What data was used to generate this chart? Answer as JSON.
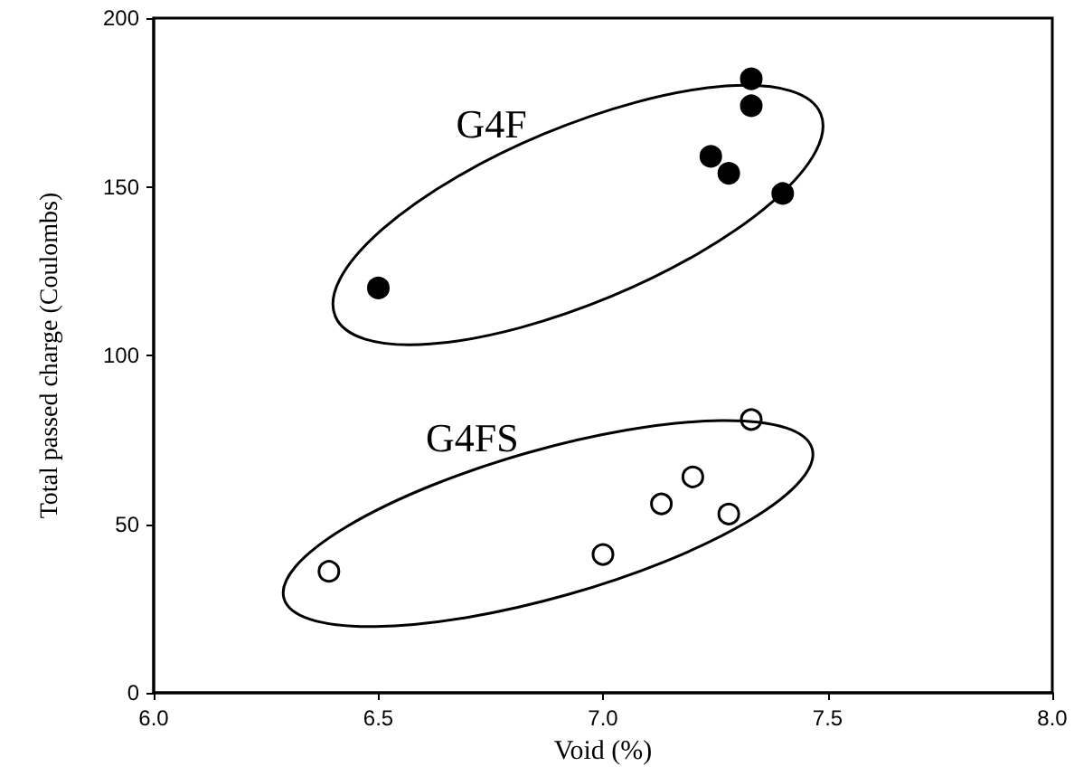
{
  "chart_data": {
    "type": "scatter",
    "xlabel": "Void (%)",
    "ylabel": "Total passed charge (Coulombs)",
    "xlim": [
      6.0,
      8.0
    ],
    "xticks": [
      {
        "value": 6.0,
        "label": "6.0"
      },
      {
        "value": 6.5,
        "label": "6.5"
      },
      {
        "value": 7.0,
        "label": "7.0"
      },
      {
        "value": 7.5,
        "label": "7.5"
      },
      {
        "value": 8.0,
        "label": "8.0"
      }
    ],
    "ylim": [
      0,
      200
    ],
    "yticks": [
      0,
      50,
      100,
      150,
      200
    ],
    "marker": "circle",
    "grid": false,
    "series": [
      {
        "color": "#000000",
        "x": [
          6.5,
          7.33,
          7.33,
          7.24,
          7.28,
          7.4
        ],
        "values": [
          120,
          182,
          174,
          159,
          154,
          148
        ]
      },
      {
        "color": "#ffffff",
        "x": [
          6.39,
          7.0,
          7.13,
          7.2,
          7.28,
          7.33
        ],
        "values": [
          36,
          41,
          56,
          64,
          53,
          81
        ]
      }
    ],
    "annotations": [
      "G4F",
      "G4FS"
    ]
  }
}
